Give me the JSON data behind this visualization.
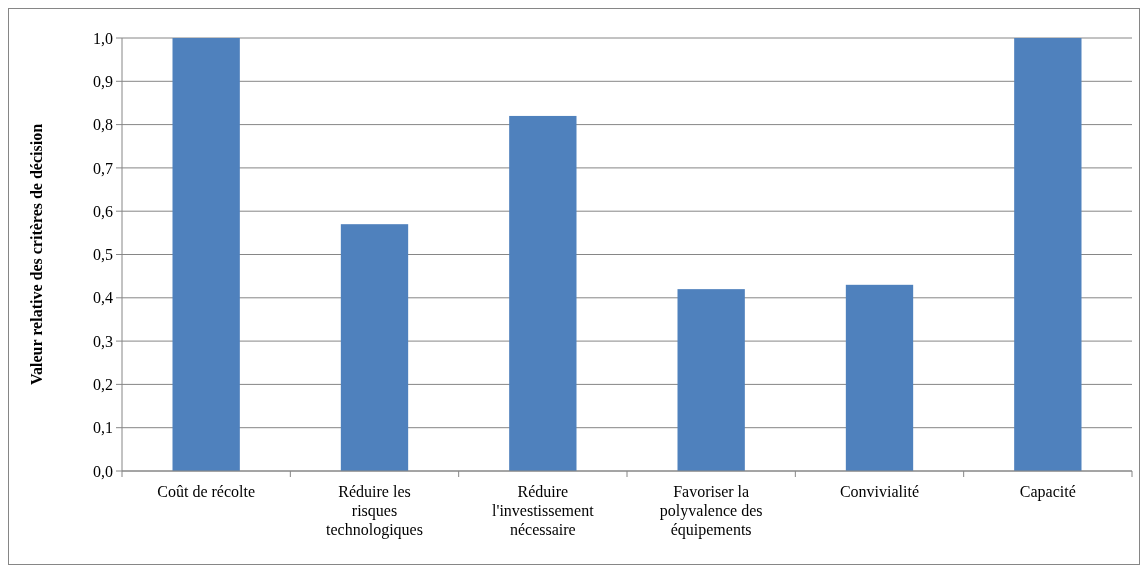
{
  "chart_data": {
    "type": "bar",
    "ylabel": "Valeur relative des critères de décision",
    "categories": [
      "Coût de récolte",
      "Réduire les risques technologiques",
      "Réduire l'investissement nécessaire",
      "Favoriser la polyvalence des équipements",
      "Convivialité",
      "Capacité"
    ],
    "values": [
      1.0,
      0.57,
      0.82,
      0.42,
      0.43,
      1.0
    ],
    "color": "#4f81bd",
    "ylim": [
      0,
      1
    ],
    "yticks": [
      {
        "value": 0,
        "label": "0,0"
      },
      {
        "value": 0.1,
        "label": "0,1"
      },
      {
        "value": 0.2,
        "label": "0,2"
      },
      {
        "value": 0.3,
        "label": "0,3"
      },
      {
        "value": 0.4,
        "label": "0,4"
      },
      {
        "value": 0.5,
        "label": "0,5"
      },
      {
        "value": 0.6,
        "label": "0,6"
      },
      {
        "value": 0.7,
        "label": "0,7"
      },
      {
        "value": 0.8,
        "label": "0,8"
      },
      {
        "value": 0.9,
        "label": "0,9"
      },
      {
        "value": 1,
        "label": "1,0"
      }
    ],
    "grid": "y"
  }
}
